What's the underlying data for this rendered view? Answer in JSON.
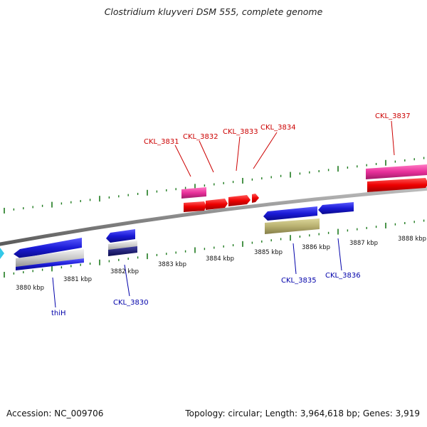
{
  "header": {
    "title": "Clostridium kluyveri DSM 555, complete genome"
  },
  "footer": {
    "accession": "Accession: NC_009706",
    "info": "Topology: circular; Length: 3,964,618 bp; Genes: 3,919"
  },
  "scale_labels": [
    "3880 kbp",
    "3881 kbp",
    "3882 kbp",
    "3883 kbp",
    "3884 kbp",
    "3885 kbp",
    "3886 kbp",
    "3887 kbp",
    "3888 kbp"
  ],
  "gene_labels": {
    "forward": [
      "CKL_3831",
      "CKL_3832",
      "CKL_3833",
      "CKL_3834",
      "CKL_3837"
    ],
    "reverse": [
      "thiH",
      "CKL_3830",
      "CKL_3835",
      "CKL_3836"
    ]
  },
  "colors": {
    "forward_label": "#cc0000",
    "reverse_label": "#0000aa",
    "cds_forward": "#ee0000",
    "cds_reverse": "#1a1ad6",
    "rna_pink": "#e8309a",
    "backbone": "#888888",
    "ticks": "#1d7a1d",
    "olive": "#b8b070"
  }
}
